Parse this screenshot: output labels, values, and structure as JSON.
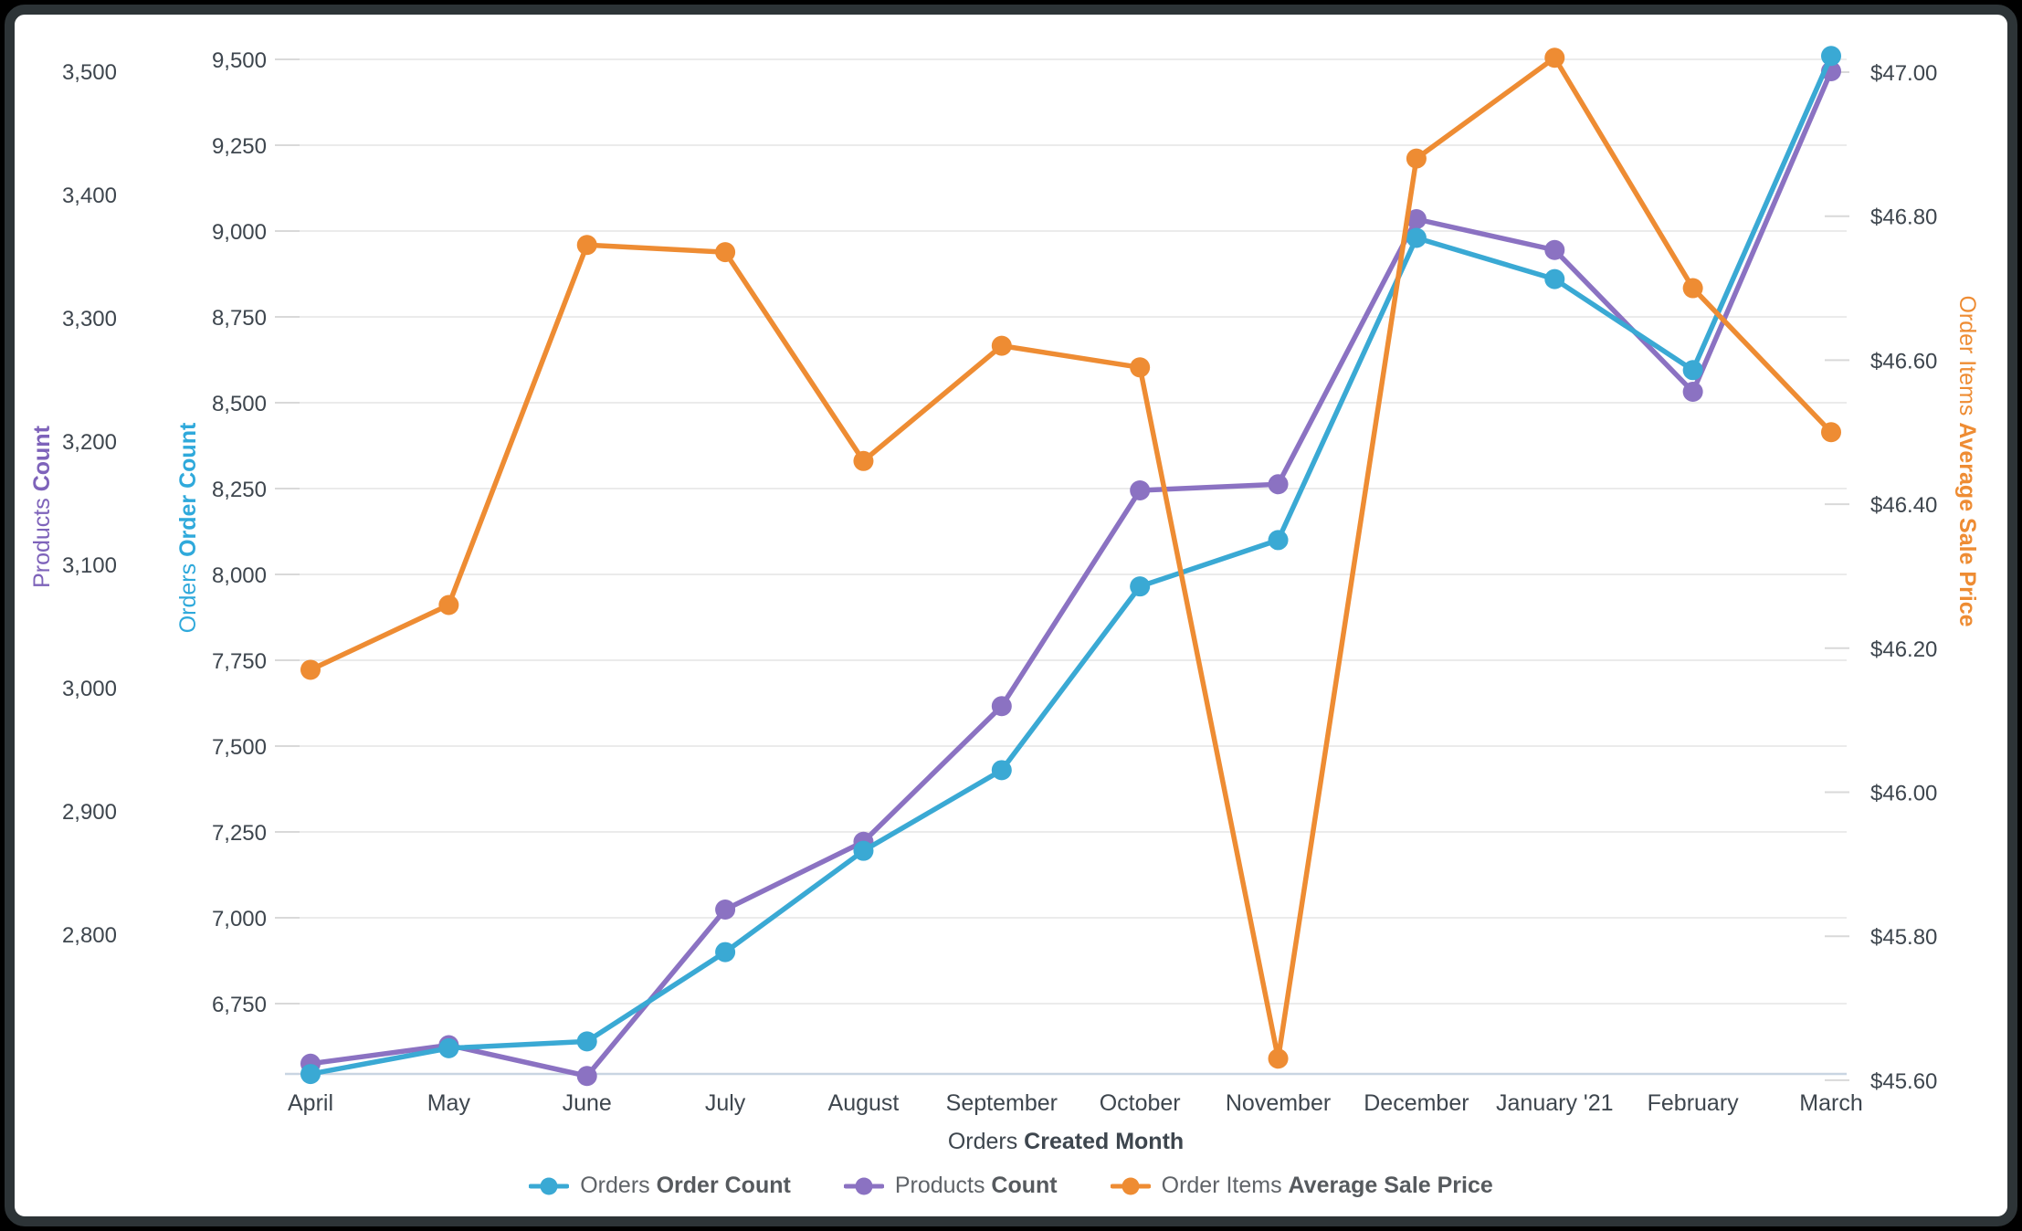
{
  "window": {
    "background": "#000000",
    "card_border": "#2d3437",
    "card_background": "#ffffff"
  },
  "chart_data": {
    "type": "line",
    "categories": [
      "April",
      "May",
      "June",
      "July",
      "August",
      "September",
      "October",
      "November",
      "December",
      "January '21",
      "February",
      "March"
    ],
    "x_axis_title": {
      "normal": "Orders ",
      "bold": "Created Month"
    },
    "series": [
      {
        "id": "orders",
        "axis": "orders",
        "label_normal": "Orders ",
        "label_bold": "Order Count",
        "color": "#3AA9D4",
        "values": [
          6545,
          6620,
          6640,
          6900,
          7195,
          7430,
          7965,
          8100,
          8980,
          8860,
          8595,
          9510
        ]
      },
      {
        "id": "products",
        "axis": "products",
        "label_normal": "Products ",
        "label_bold": "Count",
        "color": "#8B72C2",
        "values": [
          2695,
          2710,
          2685,
          2820,
          2875,
          2985,
          3160,
          3165,
          3380,
          3355,
          3240,
          3500
        ]
      },
      {
        "id": "price",
        "axis": "price",
        "label_normal": "Order Items ",
        "label_bold": "Average Sale Price",
        "color": "#EE8C33",
        "values": [
          46.17,
          46.26,
          46.76,
          46.75,
          46.46,
          46.62,
          46.59,
          45.63,
          46.88,
          47.02,
          46.7,
          46.5
        ]
      }
    ],
    "axes": {
      "products": {
        "title_normal": "Products ",
        "title_bold": "Count",
        "color": "#7E63BA",
        "tick_labels": [
          "3,500",
          "3,400",
          "3,300",
          "3,200",
          "3,100",
          "3,000",
          "2,900",
          "2,800"
        ],
        "tick_values": [
          3500,
          3400,
          3300,
          3200,
          3100,
          3000,
          2900,
          2800
        ]
      },
      "orders": {
        "title_normal": "Orders ",
        "title_bold": "Order Count",
        "color": "#2FA9DB",
        "tick_labels": [
          "9,500",
          "9,250",
          "9,000",
          "8,750",
          "8,500",
          "8,250",
          "8,000",
          "7,750",
          "7,500",
          "7,250",
          "7,000",
          "6,750"
        ],
        "tick_values": [
          9500,
          9250,
          9000,
          8750,
          8500,
          8250,
          8000,
          7750,
          7500,
          7250,
          7000,
          6750
        ]
      },
      "price": {
        "title_normal": "Order Items ",
        "title_bold": "Average Sale Price",
        "color": "#EE8C33",
        "tick_labels": [
          "$47.00",
          "$46.80",
          "$46.60",
          "$46.40",
          "$46.20",
          "$46.00",
          "$45.80",
          "$45.60"
        ],
        "tick_values": [
          47.0,
          46.8,
          46.6,
          46.4,
          46.2,
          46.0,
          45.8,
          45.6
        ]
      }
    },
    "legend_position": "bottom",
    "grid": true,
    "colors": {
      "gridline": "#ebebeb",
      "baseline": "#c9d5e2",
      "tick_dash": "#d9d9d9",
      "tick_text": "#3e464e",
      "x_label_text": "#3e464e",
      "axis_title_text": "#3e464e",
      "legend_text": "#5f6368"
    }
  }
}
